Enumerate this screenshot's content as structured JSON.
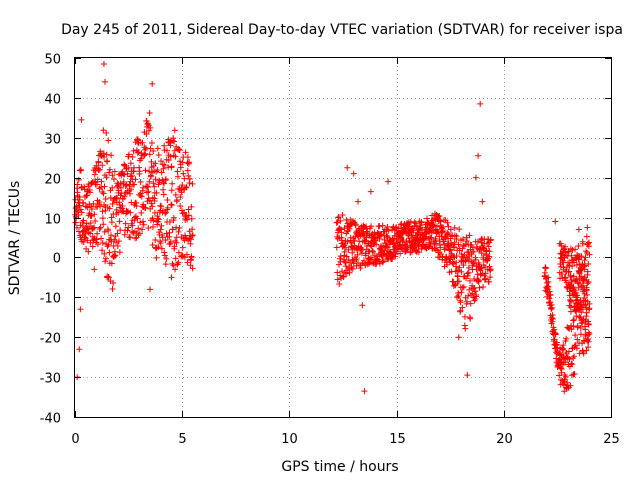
{
  "chart_data": {
    "type": "scatter",
    "title": "Day 245 of 2011, Sidereal Day-to-day VTEC variation (SDTVAR) for receiver ispa",
    "xlabel": "GPS time / hours",
    "ylabel": "SDTVAR / TECUs",
    "xlim": [
      0,
      25
    ],
    "ylim": [
      -40,
      50
    ],
    "xticks": [
      0,
      5,
      10,
      15,
      20,
      25
    ],
    "yticks": [
      -40,
      -30,
      -20,
      -10,
      0,
      10,
      20,
      30,
      40,
      50
    ],
    "xtick_labels": [
      "0",
      "5",
      "10",
      "15",
      "20",
      "25"
    ],
    "ytick_labels": [
      "-40",
      "-30",
      "-20",
      "-10",
      "0",
      "10",
      "20",
      "30",
      "40",
      "50"
    ],
    "grid": true,
    "marker": "+",
    "color": "#ff0000",
    "series": [
      {
        "name": "SDTVAR",
        "bands": [
          {
            "x": [
              0.0,
              0.3,
              0.5,
              0.8,
              1.0,
              1.2,
              1.4,
              1.6,
              1.8,
              2.0,
              2.3,
              2.6,
              2.9,
              3.2,
              3.5,
              3.7,
              4.0,
              4.3,
              4.6,
              4.9,
              5.1,
              5.3,
              5.5
            ],
            "lo": [
              8,
              4,
              2,
              0,
              2,
              2,
              -2,
              -8,
              -8,
              0,
              2,
              4,
              5,
              6,
              6,
              0,
              -2,
              -4,
              -5,
              -5,
              -3,
              -2,
              -3
            ],
            "hi": [
              22,
              22,
              18,
              20,
              25,
              30,
              35,
              30,
              22,
              22,
              24,
              27,
              30,
              33,
              37,
              28,
              27,
              29,
              33,
              31,
              28,
              25,
              18
            ]
          },
          {
            "x": [
              12.2,
              12.5,
              12.8,
              13.2,
              13.6,
              14.0,
              14.5,
              15.0,
              15.5,
              16.0,
              16.5,
              16.8,
              17.2,
              17.6,
              18.0,
              18.3,
              18.6,
              18.9,
              19.2,
              19.4
            ],
            "lo": [
              -8,
              -5,
              -4,
              -3,
              -2,
              -2,
              -1,
              0,
              1,
              1,
              2,
              1,
              -2,
              -6,
              -15,
              -20,
              -12,
              -8,
              -7,
              -6
            ],
            "hi": [
              12,
              11,
              10,
              9,
              8,
              8,
              8,
              8,
              9,
              9,
              10,
              11,
              10,
              8,
              7,
              6,
              5,
              5,
              5,
              5
            ]
          },
          {
            "x": [
              21.9,
              22.1,
              22.3,
              22.5,
              22.7,
              22.9,
              23.1,
              23.3,
              23.5,
              23.7,
              23.9,
              24.0
            ],
            "lo": [
              -8,
              -12,
              -20,
              -28,
              -33,
              -35,
              -33,
              -30,
              -28,
              -25,
              -24,
              -22
            ],
            "hi": [
              0,
              -5,
              -15,
              -22,
              -23,
              -20,
              -5,
              -2,
              -3,
              -4,
              -5,
              -8
            ]
          },
          {
            "x": [
              22.6,
              22.9,
              23.2,
              23.5,
              23.8,
              24.0
            ],
            "lo": [
              -5,
              -8,
              -12,
              -16,
              -20,
              -22
            ],
            "hi": [
              5,
              3,
              2,
              4,
              6,
              6
            ]
          }
        ],
        "outliers": [
          [
            1.35,
            48.5
          ],
          [
            1.4,
            44
          ],
          [
            3.6,
            43.5
          ],
          [
            0.3,
            34.5
          ],
          [
            0.1,
            -30
          ],
          [
            0.2,
            -23
          ],
          [
            0.25,
            -13
          ],
          [
            0.9,
            -3
          ],
          [
            1.5,
            -5
          ],
          [
            3.5,
            -8
          ],
          [
            4.5,
            -5
          ],
          [
            12.7,
            22.5
          ],
          [
            13.0,
            21
          ],
          [
            13.5,
            -33.5
          ],
          [
            13.8,
            16.5
          ],
          [
            14.6,
            19
          ],
          [
            13.2,
            14
          ],
          [
            18.9,
            38.5
          ],
          [
            18.8,
            25.5
          ],
          [
            17.9,
            -20
          ],
          [
            18.3,
            -29.5
          ],
          [
            18.7,
            20
          ],
          [
            19.0,
            14
          ],
          [
            22.4,
            9
          ],
          [
            23.5,
            7
          ],
          [
            23.9,
            7.5
          ],
          [
            13.4,
            -12
          ],
          [
            18.6,
            -10
          ]
        ]
      }
    ]
  }
}
